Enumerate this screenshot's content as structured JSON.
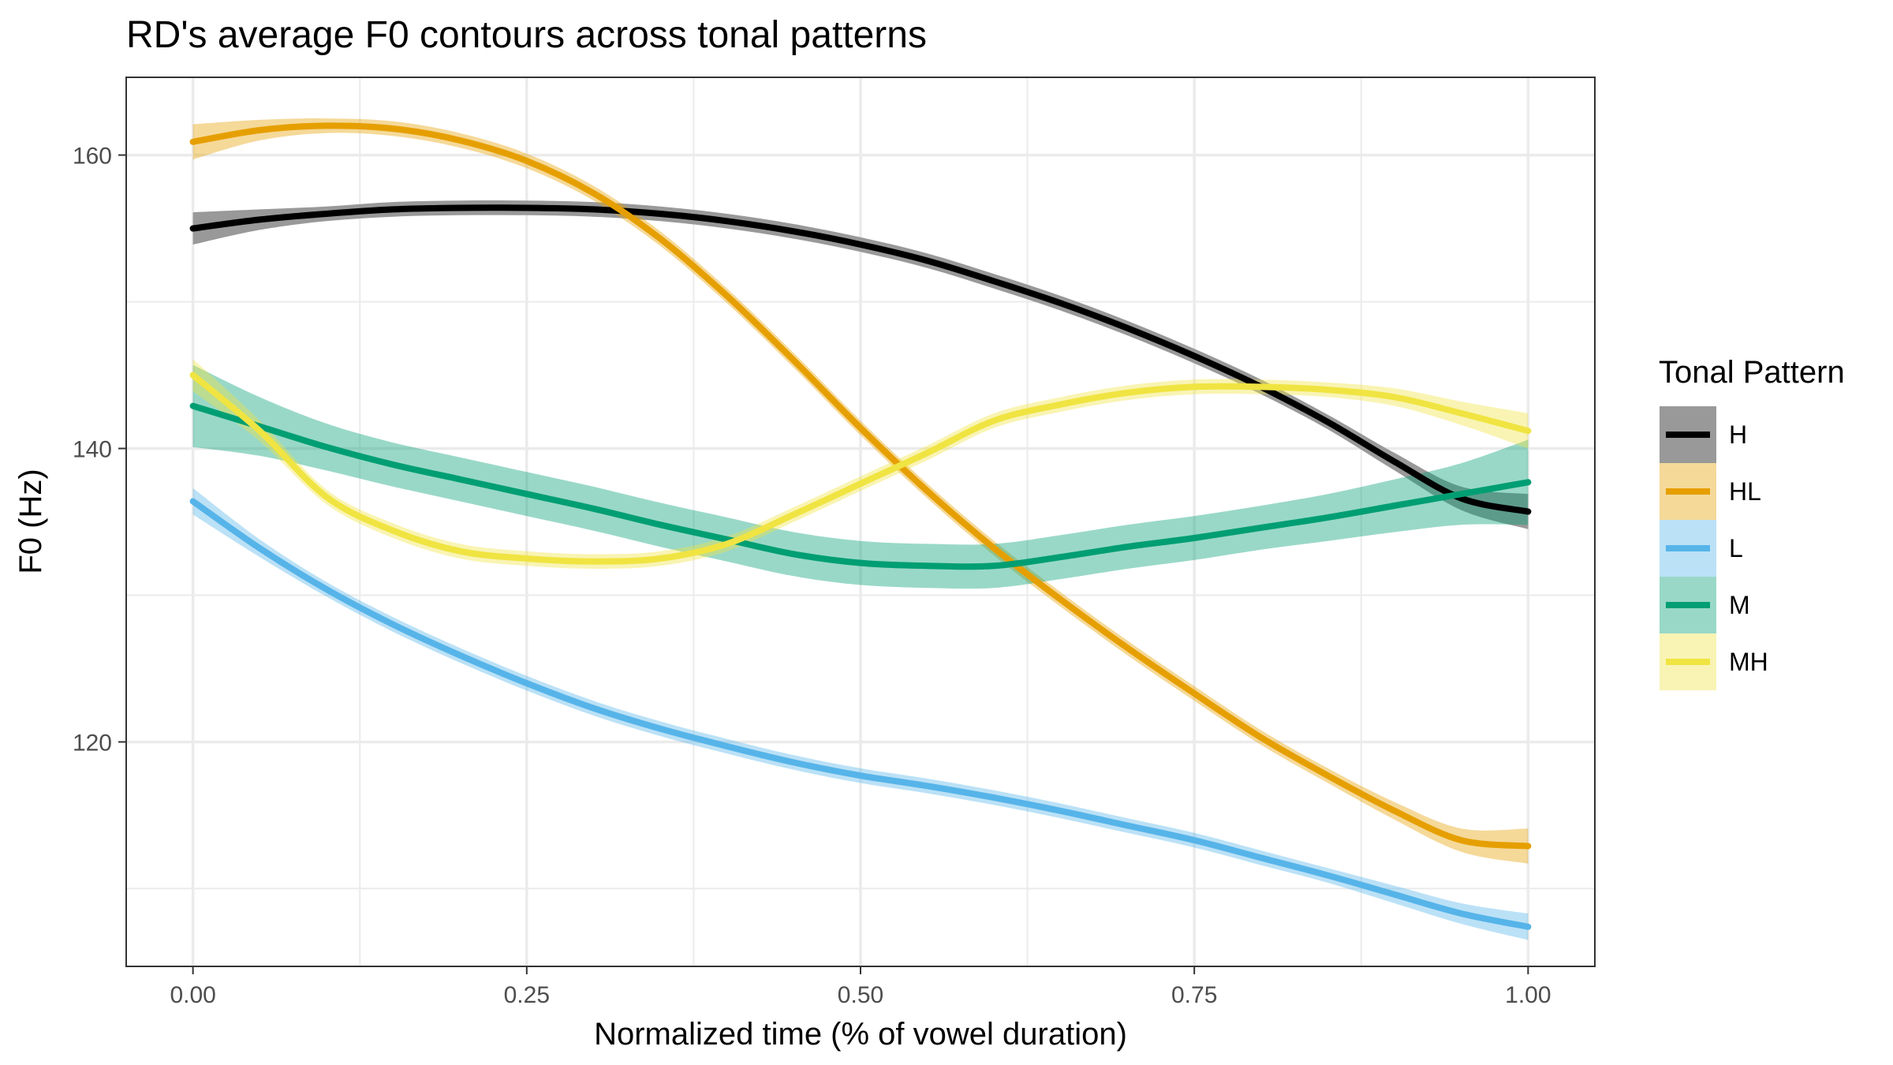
{
  "chart_data": {
    "type": "line",
    "title": "RD's average F0 contours across tonal patterns",
    "xlabel": "Normalized time (% of vowel duration)",
    "ylabel": "F0 (Hz)",
    "xlim": [
      -0.05,
      1.05
    ],
    "ylim": [
      104.7,
      165.3
    ],
    "x_ticks": [
      0.0,
      0.25,
      0.5,
      0.75,
      1.0
    ],
    "x_tick_labels": [
      "0.00",
      "0.25",
      "0.50",
      "0.75",
      "1.00"
    ],
    "y_ticks": [
      120,
      140,
      160
    ],
    "y_tick_labels": [
      "120",
      "140",
      "160"
    ],
    "grid": true,
    "confidence_band": true,
    "legend": {
      "title": "Tonal Pattern",
      "placement": "right"
    },
    "x": [
      0.0,
      0.05,
      0.1,
      0.15,
      0.2,
      0.25,
      0.3,
      0.35,
      0.4,
      0.45,
      0.5,
      0.55,
      0.6,
      0.65,
      0.7,
      0.75,
      0.8,
      0.85,
      0.9,
      0.95,
      1.0
    ],
    "series": [
      {
        "name": "H",
        "color": "#000000",
        "band_color": "#999999",
        "values": [
          155.0,
          155.6,
          156.0,
          156.3,
          156.4,
          156.4,
          156.3,
          156.0,
          155.5,
          154.8,
          153.9,
          152.8,
          151.4,
          149.9,
          148.2,
          146.3,
          144.2,
          141.8,
          139.1,
          136.6,
          135.7
        ],
        "ci": [
          1.1,
          0.7,
          0.5,
          0.5,
          0.5,
          0.5,
          0.5,
          0.5,
          0.5,
          0.5,
          0.5,
          0.5,
          0.5,
          0.5,
          0.5,
          0.5,
          0.5,
          0.5,
          0.6,
          0.8,
          1.2
        ]
      },
      {
        "name": "HL",
        "color": "#E69F00",
        "band_color": "#E69F00",
        "values": [
          160.9,
          161.7,
          162.0,
          161.8,
          161.0,
          159.6,
          157.4,
          154.3,
          150.4,
          146.0,
          141.4,
          137.1,
          133.2,
          129.7,
          126.4,
          123.3,
          120.3,
          117.7,
          115.3,
          113.3,
          112.9
        ],
        "ci": [
          1.2,
          0.7,
          0.5,
          0.5,
          0.5,
          0.5,
          0.5,
          0.5,
          0.5,
          0.5,
          0.5,
          0.5,
          0.5,
          0.5,
          0.5,
          0.5,
          0.5,
          0.5,
          0.6,
          0.8,
          1.2
        ]
      },
      {
        "name": "L",
        "color": "#56B4E9",
        "band_color": "#56B4E9",
        "values": [
          136.4,
          133.2,
          130.4,
          128.0,
          125.9,
          124.0,
          122.3,
          120.9,
          119.7,
          118.6,
          117.7,
          117.0,
          116.2,
          115.3,
          114.3,
          113.3,
          112.1,
          110.9,
          109.6,
          108.3,
          107.4
        ],
        "ci": [
          0.9,
          0.6,
          0.5,
          0.5,
          0.5,
          0.5,
          0.5,
          0.5,
          0.5,
          0.5,
          0.5,
          0.5,
          0.5,
          0.5,
          0.5,
          0.5,
          0.5,
          0.5,
          0.6,
          0.7,
          0.9
        ]
      },
      {
        "name": "M",
        "color": "#009E73",
        "band_color": "#009E73",
        "values": [
          142.9,
          141.5,
          140.1,
          138.9,
          137.9,
          136.9,
          135.9,
          134.8,
          133.8,
          132.8,
          132.2,
          132.0,
          132.0,
          132.6,
          133.3,
          133.9,
          134.6,
          135.3,
          136.1,
          136.9,
          137.7
        ],
        "ci": [
          2.8,
          2.0,
          1.6,
          1.5,
          1.5,
          1.5,
          1.5,
          1.5,
          1.5,
          1.5,
          1.5,
          1.5,
          1.5,
          1.5,
          1.5,
          1.5,
          1.5,
          1.6,
          1.8,
          2.1,
          2.9
        ]
      },
      {
        "name": "MH",
        "color": "#F0E442",
        "band_color": "#F0E442",
        "values": [
          145.0,
          141.2,
          136.7,
          134.4,
          133.0,
          132.5,
          132.3,
          132.5,
          133.5,
          135.5,
          137.6,
          139.7,
          141.9,
          143.0,
          143.8,
          144.2,
          144.2,
          144.0,
          143.5,
          142.4,
          141.2
        ],
        "ci": [
          1.1,
          0.7,
          0.5,
          0.5,
          0.5,
          0.5,
          0.5,
          0.5,
          0.5,
          0.5,
          0.5,
          0.5,
          0.5,
          0.5,
          0.5,
          0.5,
          0.5,
          0.5,
          0.6,
          0.8,
          1.2
        ]
      }
    ]
  }
}
